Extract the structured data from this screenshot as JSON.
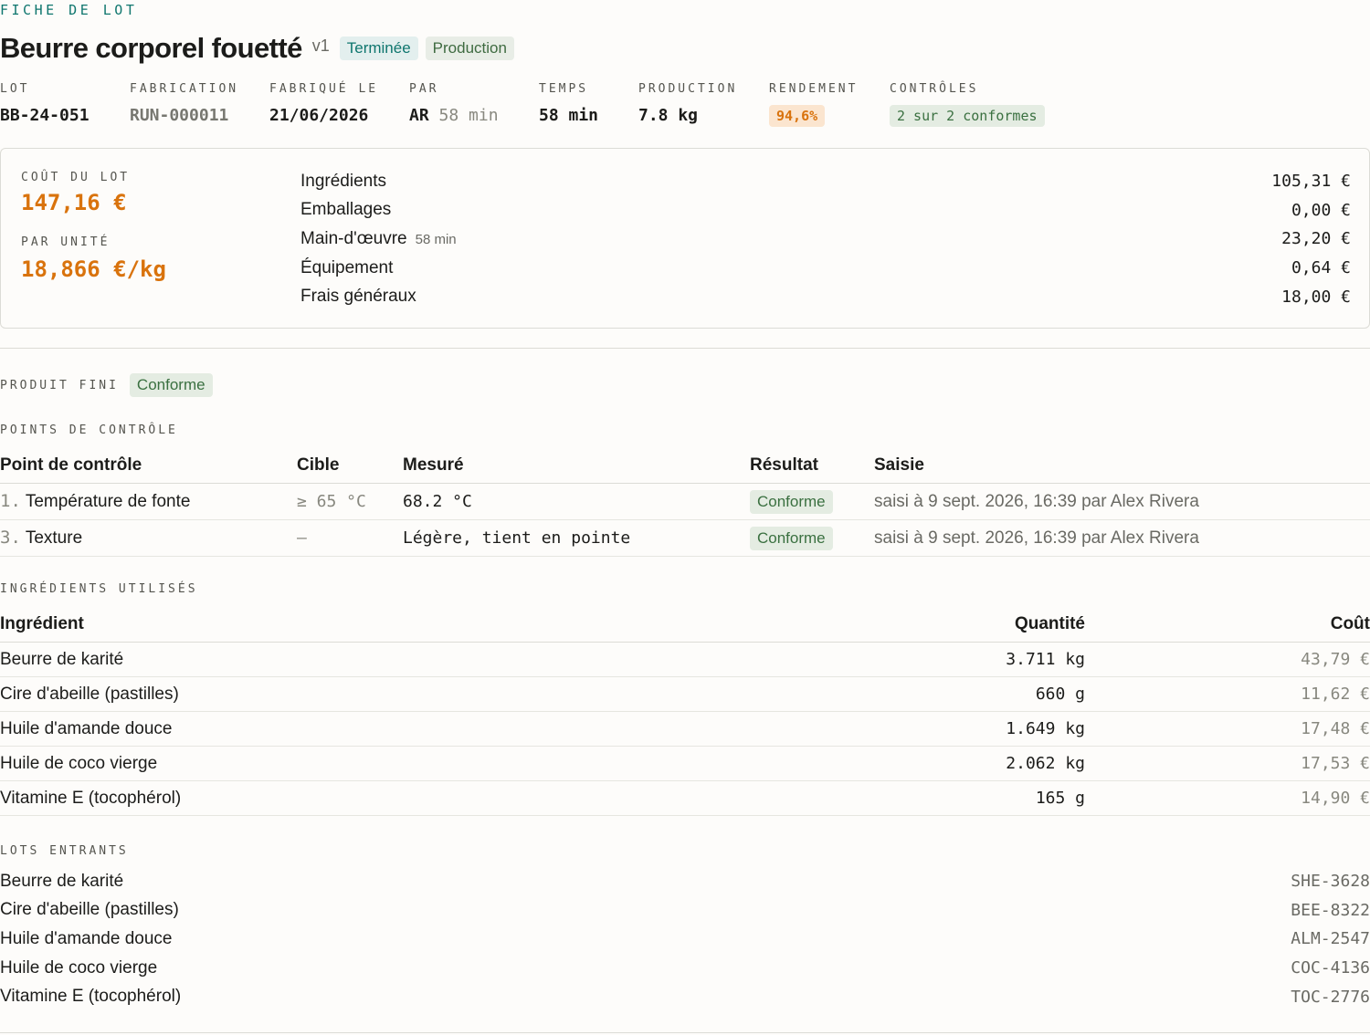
{
  "header": {
    "eyebrow": "FICHE DE LOT",
    "title": "Beurre corporel fouetté",
    "version": "v1",
    "status_badge": "Terminée",
    "type_badge": "Production"
  },
  "meta": {
    "lot": {
      "label": "LOT",
      "value": "BB-24-051"
    },
    "fabrication": {
      "label": "FABRICATION",
      "value": "RUN-000011"
    },
    "fabrique_le": {
      "label": "FABRIQUÉ LE",
      "value": "21/06/2026"
    },
    "par": {
      "label": "PAR",
      "value": "AR",
      "sub": "58 min"
    },
    "temps": {
      "label": "TEMPS",
      "value": "58 min"
    },
    "production": {
      "label": "PRODUCTION",
      "value": "7.8 kg"
    },
    "rendement": {
      "label": "RENDEMENT",
      "value": "94,6%"
    },
    "controles": {
      "label": "CONTRÔLES",
      "value": "2 sur 2 conformes"
    }
  },
  "cost": {
    "lot_label": "COÛT DU LOT",
    "lot_value": "147,16 €",
    "unit_label": "PAR UNITÉ",
    "unit_value": "18,866 €/kg",
    "lines": [
      {
        "label": "Ingrédients",
        "sub": "",
        "amount": "105,31 €"
      },
      {
        "label": "Emballages",
        "sub": "",
        "amount": "0,00 €"
      },
      {
        "label": "Main-d'œuvre",
        "sub": "58 min",
        "amount": "23,20 €"
      },
      {
        "label": "Équipement",
        "sub": "",
        "amount": "0,64 €"
      },
      {
        "label": "Frais généraux",
        "sub": "",
        "amount": "18,00 €"
      }
    ]
  },
  "produit_fini": {
    "label": "PRODUIT FINI",
    "badge": "Conforme"
  },
  "controls": {
    "label": "POINTS DE CONTRÔLE",
    "headers": {
      "point": "Point de contrôle",
      "cible": "Cible",
      "mesure": "Mesuré",
      "resultat": "Résultat",
      "saisie": "Saisie"
    },
    "rows": [
      {
        "num": "1.",
        "point": "Température de fonte",
        "cible": "≥ 65 °C",
        "mesure": "68.2 °C",
        "resultat": "Conforme",
        "saisie": "saisi à 9 sept. 2026, 16:39 par Alex Rivera"
      },
      {
        "num": "3.",
        "point": "Texture",
        "cible": "—",
        "mesure": "Légère, tient en pointe",
        "resultat": "Conforme",
        "saisie": "saisi à 9 sept. 2026, 16:39 par Alex Rivera"
      }
    ]
  },
  "ingredients": {
    "label": "INGRÉDIENTS UTILISÉS",
    "headers": {
      "name": "Ingrédient",
      "qty": "Quantité",
      "cost": "Coût"
    },
    "rows": [
      {
        "name": "Beurre de karité",
        "qty": "3.711 kg",
        "cost": "43,79 €"
      },
      {
        "name": "Cire d'abeille (pastilles)",
        "qty": "660 g",
        "cost": "11,62 €"
      },
      {
        "name": "Huile d'amande douce",
        "qty": "1.649 kg",
        "cost": "17,48 €"
      },
      {
        "name": "Huile de coco vierge",
        "qty": "2.062 kg",
        "cost": "17,53 €"
      },
      {
        "name": "Vitamine E (tocophérol)",
        "qty": "165 g",
        "cost": "14,90 €"
      }
    ]
  },
  "lots_entrants": {
    "label": "LOTS ENTRANTS",
    "rows": [
      {
        "name": "Beurre de karité",
        "code": "SHE-3628"
      },
      {
        "name": "Cire d'abeille (pastilles)",
        "code": "BEE-8322"
      },
      {
        "name": "Huile d'amande douce",
        "code": "ALM-2547"
      },
      {
        "name": "Huile de coco vierge",
        "code": "COC-4136"
      },
      {
        "name": "Vitamine E (tocophérol)",
        "code": "TOC-2776"
      }
    ]
  }
}
